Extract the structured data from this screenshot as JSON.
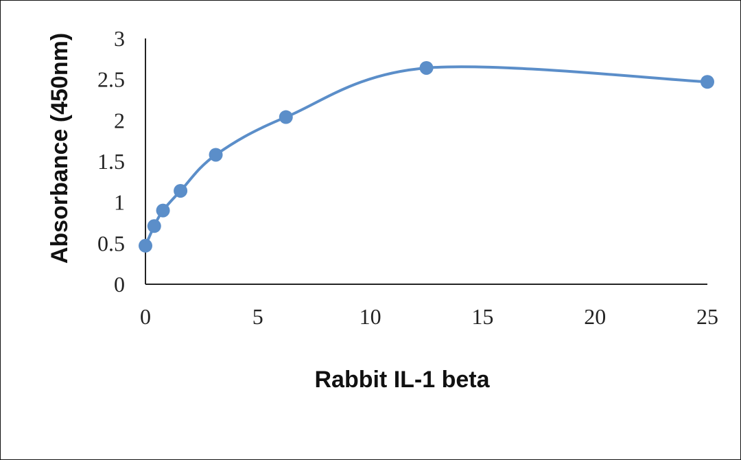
{
  "chart_data": {
    "type": "scatter",
    "title": "",
    "xlabel": "Rabbit IL-1 beta",
    "ylabel": "Absorbance (450nm)",
    "xlim": [
      0,
      25
    ],
    "ylim": [
      0,
      3
    ],
    "x_ticks": [
      "0",
      "5",
      "10",
      "15",
      "20",
      "25"
    ],
    "y_ticks": [
      "0",
      "0.5",
      "1",
      "1.5",
      "2",
      "2.5",
      "3"
    ],
    "grid": false,
    "smoothed_line": true,
    "series": [
      {
        "x": [
          0,
          0.39,
          0.78,
          1.56,
          3.13,
          6.25,
          12.5,
          25
        ],
        "y": [
          0.47,
          0.71,
          0.9,
          1.14,
          1.58,
          2.04,
          2.64,
          2.47
        ],
        "color": "#5B8EC9"
      }
    ]
  }
}
